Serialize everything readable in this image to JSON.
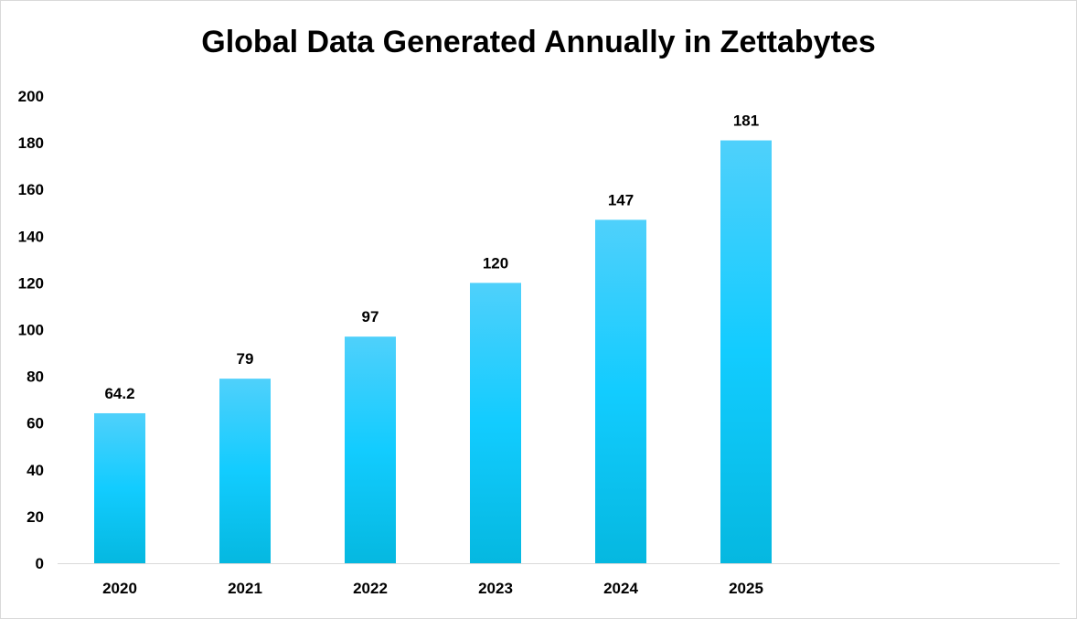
{
  "chart_data": {
    "type": "bar",
    "title": "Global Data Generated Annually in Zettabytes",
    "xlabel": "",
    "ylabel": "",
    "categories": [
      "2020",
      "2021",
      "2022",
      "2023",
      "2024",
      "2025"
    ],
    "values": [
      64.2,
      79,
      97,
      120,
      147,
      181
    ],
    "data_labels": [
      "64.2",
      "79",
      "97",
      "120",
      "147",
      "181"
    ],
    "ylim": [
      0,
      200
    ],
    "yticks": [
      0,
      20,
      40,
      60,
      80,
      100,
      120,
      140,
      160,
      180,
      200
    ],
    "ytick_labels": [
      "0",
      "20",
      "40",
      "60",
      "80",
      "100",
      "120",
      "140",
      "160",
      "180",
      "200"
    ],
    "grid": false,
    "legend": "none",
    "colors": {
      "bar_top": "#4fd0fb",
      "bar_mid": "#12ccff",
      "bar_bottom": "#05b8e0",
      "axis": "#d9d9d9"
    }
  }
}
